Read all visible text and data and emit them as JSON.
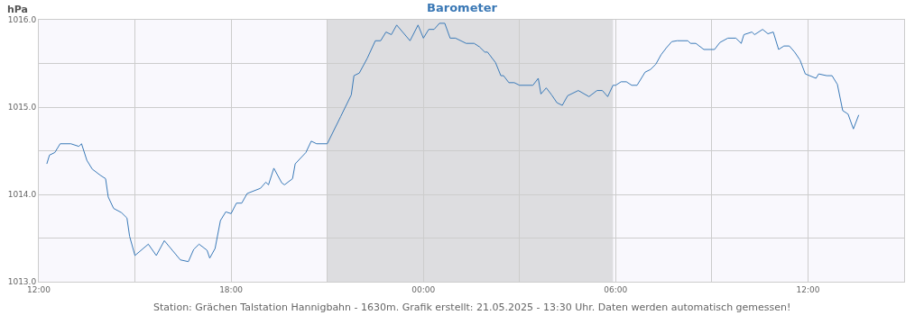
{
  "chart_data": {
    "type": "line",
    "title": "Barometer",
    "ylabel": "hPa",
    "annotations": [
      "Station: Grächen Talstation Hannigbahn - 1630m. Grafik erstellt: 21.05.2025 - 13:30 Uhr. Daten werden automatisch gemessen!"
    ],
    "x": [
      "2025-05-20T12:15",
      "2025-05-20T12:20",
      "2025-05-20T12:30",
      "2025-05-20T12:40",
      "2025-05-20T13:00",
      "2025-05-20T13:15",
      "2025-05-20T13:20",
      "2025-05-20T13:30",
      "2025-05-20T13:40",
      "2025-05-20T13:55",
      "2025-05-20T14:05",
      "2025-05-20T14:10",
      "2025-05-20T14:20",
      "2025-05-20T14:35",
      "2025-05-20T14:45",
      "2025-05-20T14:50",
      "2025-05-20T15:00",
      "2025-05-20T15:25",
      "2025-05-20T15:40",
      "2025-05-20T15:55",
      "2025-05-20T16:10",
      "2025-05-20T16:25",
      "2025-05-20T16:40",
      "2025-05-20T16:50",
      "2025-05-20T17:00",
      "2025-05-20T17:15",
      "2025-05-20T17:20",
      "2025-05-20T17:30",
      "2025-05-20T17:40",
      "2025-05-20T17:50",
      "2025-05-20T18:00",
      "2025-05-20T18:10",
      "2025-05-20T18:20",
      "2025-05-20T18:30",
      "2025-05-20T18:55",
      "2025-05-20T19:05",
      "2025-05-20T19:10",
      "2025-05-20T19:20",
      "2025-05-20T19:35",
      "2025-05-20T19:40",
      "2025-05-20T19:55",
      "2025-05-20T20:00",
      "2025-05-20T20:20",
      "2025-05-20T20:30",
      "2025-05-20T20:40",
      "2025-05-20T21:00",
      "2025-05-20T21:25",
      "2025-05-20T21:45",
      "2025-05-20T21:50",
      "2025-05-20T22:00",
      "2025-05-20T22:15",
      "2025-05-20T22:30",
      "2025-05-20T22:40",
      "2025-05-20T22:50",
      "2025-05-20T23:00",
      "2025-05-20T23:10",
      "2025-05-20T23:35",
      "2025-05-20T23:50",
      "2025-05-21T00:00",
      "2025-05-21T00:10",
      "2025-05-21T00:20",
      "2025-05-21T00:30",
      "2025-05-21T00:40",
      "2025-05-21T00:50",
      "2025-05-21T01:00",
      "2025-05-21T01:20",
      "2025-05-21T01:35",
      "2025-05-21T01:45",
      "2025-05-21T01:55",
      "2025-05-21T02:00",
      "2025-05-21T02:15",
      "2025-05-21T02:25",
      "2025-05-21T02:30",
      "2025-05-21T02:40",
      "2025-05-21T02:50",
      "2025-05-21T03:00",
      "2025-05-21T03:25",
      "2025-05-21T03:35",
      "2025-05-21T03:40",
      "2025-05-21T03:50",
      "2025-05-21T04:00",
      "2025-05-21T04:10",
      "2025-05-21T04:20",
      "2025-05-21T04:30",
      "2025-05-21T04:50",
      "2025-05-21T05:10",
      "2025-05-21T05:25",
      "2025-05-21T05:35",
      "2025-05-21T05:45",
      "2025-05-21T05:55",
      "2025-05-21T06:00",
      "2025-05-21T06:10",
      "2025-05-21T06:20",
      "2025-05-21T06:30",
      "2025-05-21T06:40",
      "2025-05-21T06:55",
      "2025-05-21T07:05",
      "2025-05-21T07:15",
      "2025-05-21T07:25",
      "2025-05-21T07:35",
      "2025-05-21T07:45",
      "2025-05-21T07:55",
      "2025-05-21T08:15",
      "2025-05-21T08:20",
      "2025-05-21T08:30",
      "2025-05-21T08:45",
      "2025-05-21T09:05",
      "2025-05-21T09:15",
      "2025-05-21T09:30",
      "2025-05-21T09:45",
      "2025-05-21T09:55",
      "2025-05-21T10:00",
      "2025-05-21T10:15",
      "2025-05-21T10:20",
      "2025-05-21T10:35",
      "2025-05-21T10:45",
      "2025-05-21T10:55",
      "2025-05-21T11:05",
      "2025-05-21T11:15",
      "2025-05-21T11:25",
      "2025-05-21T11:35",
      "2025-05-21T11:45",
      "2025-05-21T11:55",
      "2025-05-21T12:15",
      "2025-05-21T12:20",
      "2025-05-21T12:35",
      "2025-05-21T12:45",
      "2025-05-21T12:55",
      "2025-05-21T13:05",
      "2025-05-21T13:15",
      "2025-05-21T13:25",
      "2025-05-21T13:35"
    ],
    "series": [
      {
        "color": "#3a7ab8",
        "values": [
          1014.35,
          1014.45,
          1014.48,
          1014.58,
          1014.58,
          1014.55,
          1014.58,
          1014.39,
          1014.29,
          1014.22,
          1014.18,
          1013.97,
          1013.84,
          1013.79,
          1013.73,
          1013.52,
          1013.3,
          1013.43,
          1013.3,
          1013.47,
          1013.36,
          1013.25,
          1013.23,
          1013.37,
          1013.43,
          1013.36,
          1013.27,
          1013.38,
          1013.7,
          1013.8,
          1013.78,
          1013.9,
          1013.9,
          1014.01,
          1014.07,
          1014.14,
          1014.11,
          1014.3,
          1014.13,
          1014.11,
          1014.18,
          1014.35,
          1014.48,
          1014.61,
          1014.58,
          1014.58,
          1014.89,
          1015.14,
          1015.36,
          1015.39,
          1015.56,
          1015.76,
          1015.76,
          1015.86,
          1015.83,
          1015.94,
          1015.76,
          1015.94,
          1015.79,
          1015.89,
          1015.89,
          1015.96,
          1015.96,
          1015.79,
          1015.79,
          1015.73,
          1015.73,
          1015.69,
          1015.63,
          1015.63,
          1015.51,
          1015.36,
          1015.36,
          1015.28,
          1015.28,
          1015.25,
          1015.25,
          1015.33,
          1015.15,
          1015.22,
          1015.14,
          1015.05,
          1015.02,
          1015.13,
          1015.19,
          1015.12,
          1015.19,
          1015.19,
          1015.12,
          1015.25,
          1015.25,
          1015.29,
          1015.29,
          1015.25,
          1015.25,
          1015.4,
          1015.43,
          1015.49,
          1015.6,
          1015.68,
          1015.75,
          1015.76,
          1015.76,
          1015.73,
          1015.73,
          1015.66,
          1015.66,
          1015.74,
          1015.79,
          1015.79,
          1015.73,
          1015.83,
          1015.86,
          1015.83,
          1015.89,
          1015.84,
          1015.86,
          1015.66,
          1015.7,
          1015.7,
          1015.63,
          1015.54,
          1015.38,
          1015.33,
          1015.38,
          1015.36,
          1015.36,
          1015.26,
          1014.96,
          1014.92,
          1014.75,
          1014.91
        ]
      }
    ],
    "xlim": [
      "2025-05-20T12:00",
      "2025-05-21T15:00"
    ],
    "xticks": [
      {
        "value": "2025-05-20T12:00",
        "label": "12:00"
      },
      {
        "value": "2025-05-20T15:00",
        "label": null
      },
      {
        "value": "2025-05-20T18:00",
        "label": "18:00"
      },
      {
        "value": "2025-05-20T21:00",
        "label": null
      },
      {
        "value": "2025-05-21T00:00",
        "label": "00:00"
      },
      {
        "value": "2025-05-21T03:00",
        "label": null
      },
      {
        "value": "2025-05-21T06:00",
        "label": "06:00"
      },
      {
        "value": "2025-05-21T09:00",
        "label": null
      },
      {
        "value": "2025-05-21T12:00",
        "label": "12:00"
      },
      {
        "value": "2025-05-21T15:00",
        "label": null
      }
    ],
    "ylim": [
      1013,
      1016
    ],
    "yticks": [
      {
        "value": 1013,
        "label": "1013.0"
      },
      {
        "value": 1013.5,
        "label": null
      },
      {
        "value": 1014,
        "label": "1014.0"
      },
      {
        "value": 1014.5,
        "label": null
      },
      {
        "value": 1015,
        "label": "1015.0"
      },
      {
        "value": 1015.5,
        "label": null
      },
      {
        "value": 1016,
        "label": "1016.0"
      }
    ],
    "bands": [
      {
        "axis": "x",
        "from": "2025-05-20T21:00",
        "to": "2025-05-21T05:55",
        "color": "#dddde0"
      }
    ],
    "grid": true,
    "marker": "none",
    "line_style": "solid"
  }
}
